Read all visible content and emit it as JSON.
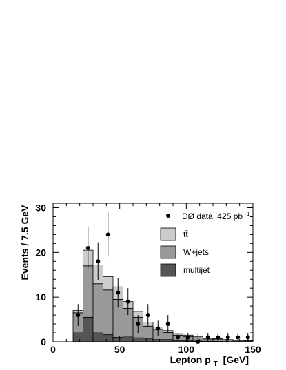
{
  "chart_data": {
    "type": "bar",
    "xlabel": "Lepton p",
    "xlabel_sub": "T",
    "xlabel_unit": "[GeV]",
    "ylabel": "Events / 7.5 GeV",
    "xlim": [
      0,
      150
    ],
    "ylim": [
      0,
      31
    ],
    "xticks": [
      0,
      50,
      100,
      150
    ],
    "yticks": [
      0,
      10,
      20,
      30
    ],
    "bin_width": 7.5,
    "bin_edges": [
      15,
      22.5,
      30,
      37.5,
      45,
      52.5,
      60,
      67.5,
      75,
      82.5,
      90,
      97.5,
      105,
      112.5,
      120,
      127.5,
      135,
      142.5,
      150
    ],
    "legend_position": "top-right",
    "series": [
      {
        "name": "multijet",
        "color": "#555555",
        "values": [
          2.0,
          5.5,
          2.0,
          1.6,
          1.0,
          1.3,
          0.9,
          0.8,
          0.5,
          0.5,
          0.3,
          0.2,
          0.15,
          0.1,
          0.1,
          0.05,
          0.05,
          0.05
        ]
      },
      {
        "name": "W+jets",
        "color": "#999999",
        "values": [
          4.5,
          11.5,
          11.0,
          10.0,
          8.5,
          6.2,
          4.6,
          2.7,
          2.3,
          1.6,
          1.2,
          1.0,
          0.75,
          0.5,
          0.4,
          0.35,
          0.25,
          0.2
        ]
      },
      {
        "name": "tt̄",
        "color": "#cccccc",
        "values": [
          0.5,
          3.5,
          4.2,
          3.0,
          2.8,
          1.5,
          1.3,
          0.9,
          0.5,
          0.4,
          0.4,
          0.3,
          0.3,
          0.2,
          0.2,
          0.1,
          0.1,
          0.05
        ]
      }
    ],
    "data_points": {
      "label": "DØ data, 425 pb",
      "label_sup": "-1",
      "x": [
        18.75,
        26.25,
        33.75,
        41.25,
        48.75,
        56.25,
        63.75,
        71.25,
        78.75,
        86.25,
        93.75,
        101.25,
        108.75,
        116.25,
        123.75,
        131.25,
        138.75,
        146.25
      ],
      "y": [
        6,
        21,
        18,
        24,
        11,
        9,
        4,
        6,
        3,
        4,
        1,
        1,
        0,
        1,
        1,
        1,
        1,
        1
      ]
    }
  }
}
